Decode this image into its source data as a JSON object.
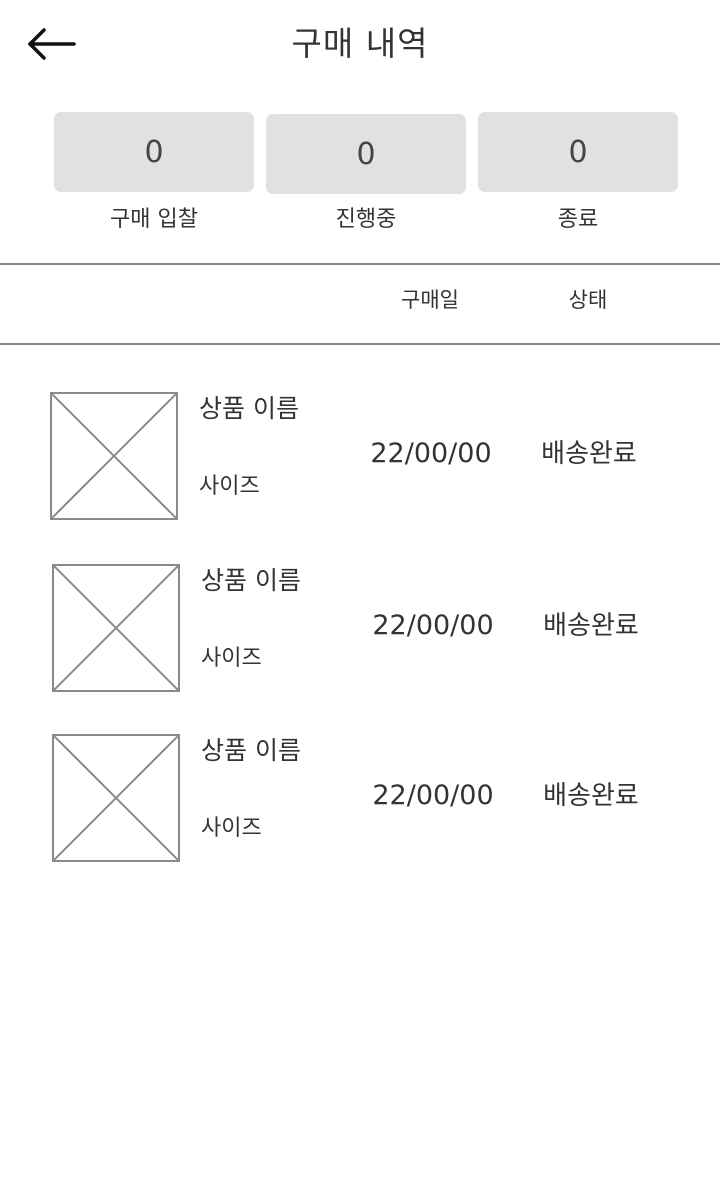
{
  "header": {
    "title": "구매 내역",
    "back_icon": "arrow-left-icon"
  },
  "stats": [
    {
      "value": "0",
      "label": "구매 입찰"
    },
    {
      "value": "0",
      "label": "진행중"
    },
    {
      "value": "0",
      "label": "종료"
    }
  ],
  "table": {
    "columns": {
      "date": "구매일",
      "status": "상태"
    },
    "rows": [
      {
        "image": "image-placeholder-icon",
        "name": "상품 이름",
        "size": "사이즈",
        "date": "22/00/00",
        "status": "배송완료"
      },
      {
        "image": "image-placeholder-icon",
        "name": "상품 이름",
        "size": "사이즈",
        "date": "22/00/00",
        "status": "배송완료"
      },
      {
        "image": "image-placeholder-icon",
        "name": "상품 이름",
        "size": "사이즈",
        "date": "22/00/00",
        "status": "배송완료"
      }
    ]
  },
  "colors": {
    "stat_box": "#e1e1e1",
    "divider": "#8a8a8a",
    "text": "#333333"
  }
}
